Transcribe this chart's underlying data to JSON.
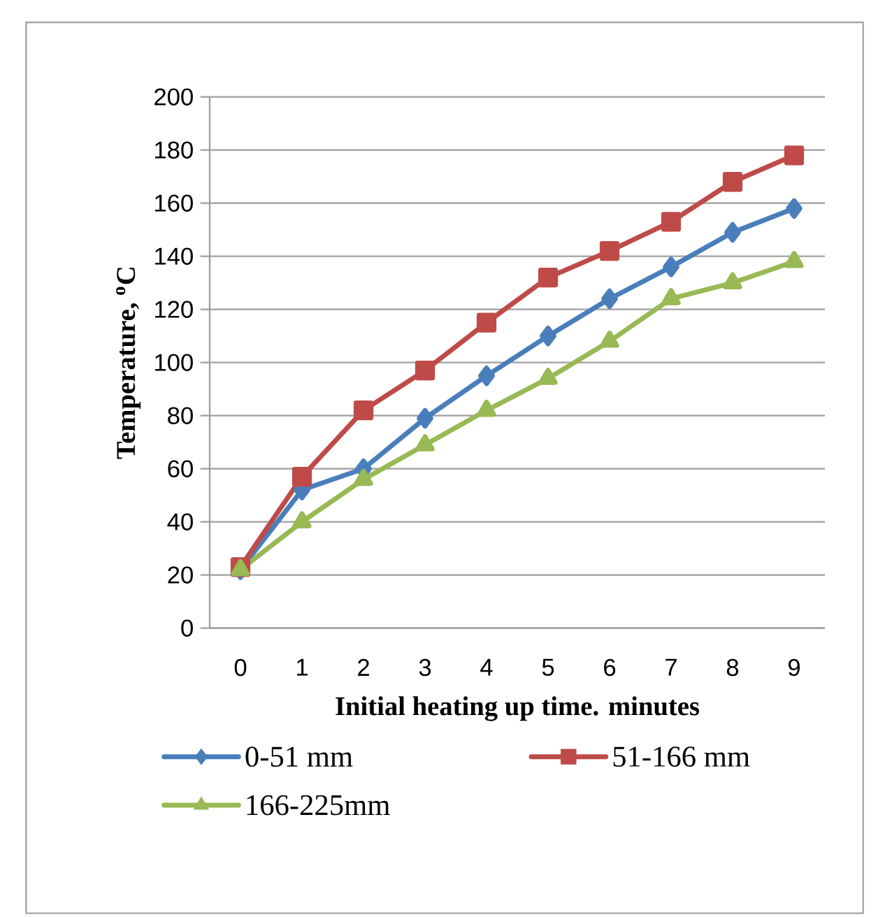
{
  "chart_data": {
    "type": "line",
    "xlabel": "Initial heating up time. minutes",
    "ylabel": "Temperature, $^{o}$C",
    "categories": [
      "0",
      "1",
      "2",
      "3",
      "4",
      "5",
      "6",
      "7",
      "8",
      "9"
    ],
    "ylim": [
      0,
      200
    ],
    "yticks": [
      0,
      20,
      40,
      60,
      80,
      100,
      120,
      140,
      160,
      180,
      200
    ],
    "grid": "y",
    "legend": "bottom",
    "series": [
      {
        "name": "0-51 mm",
        "color": "#4a7ebb",
        "marker": "diamond",
        "values": [
          22,
          52,
          60,
          79,
          95,
          110,
          124,
          136,
          149,
          158
        ]
      },
      {
        "name": "51-166 mm",
        "color": "#be4b48",
        "marker": "square",
        "values": [
          23,
          57,
          82,
          97,
          115,
          132,
          142,
          153,
          168,
          178
        ]
      },
      {
        "name": "166-225mm",
        "color": "#98b954",
        "marker": "triangle",
        "values": [
          22,
          40,
          56,
          69,
          82,
          94,
          108,
          124,
          130,
          138
        ]
      }
    ]
  }
}
